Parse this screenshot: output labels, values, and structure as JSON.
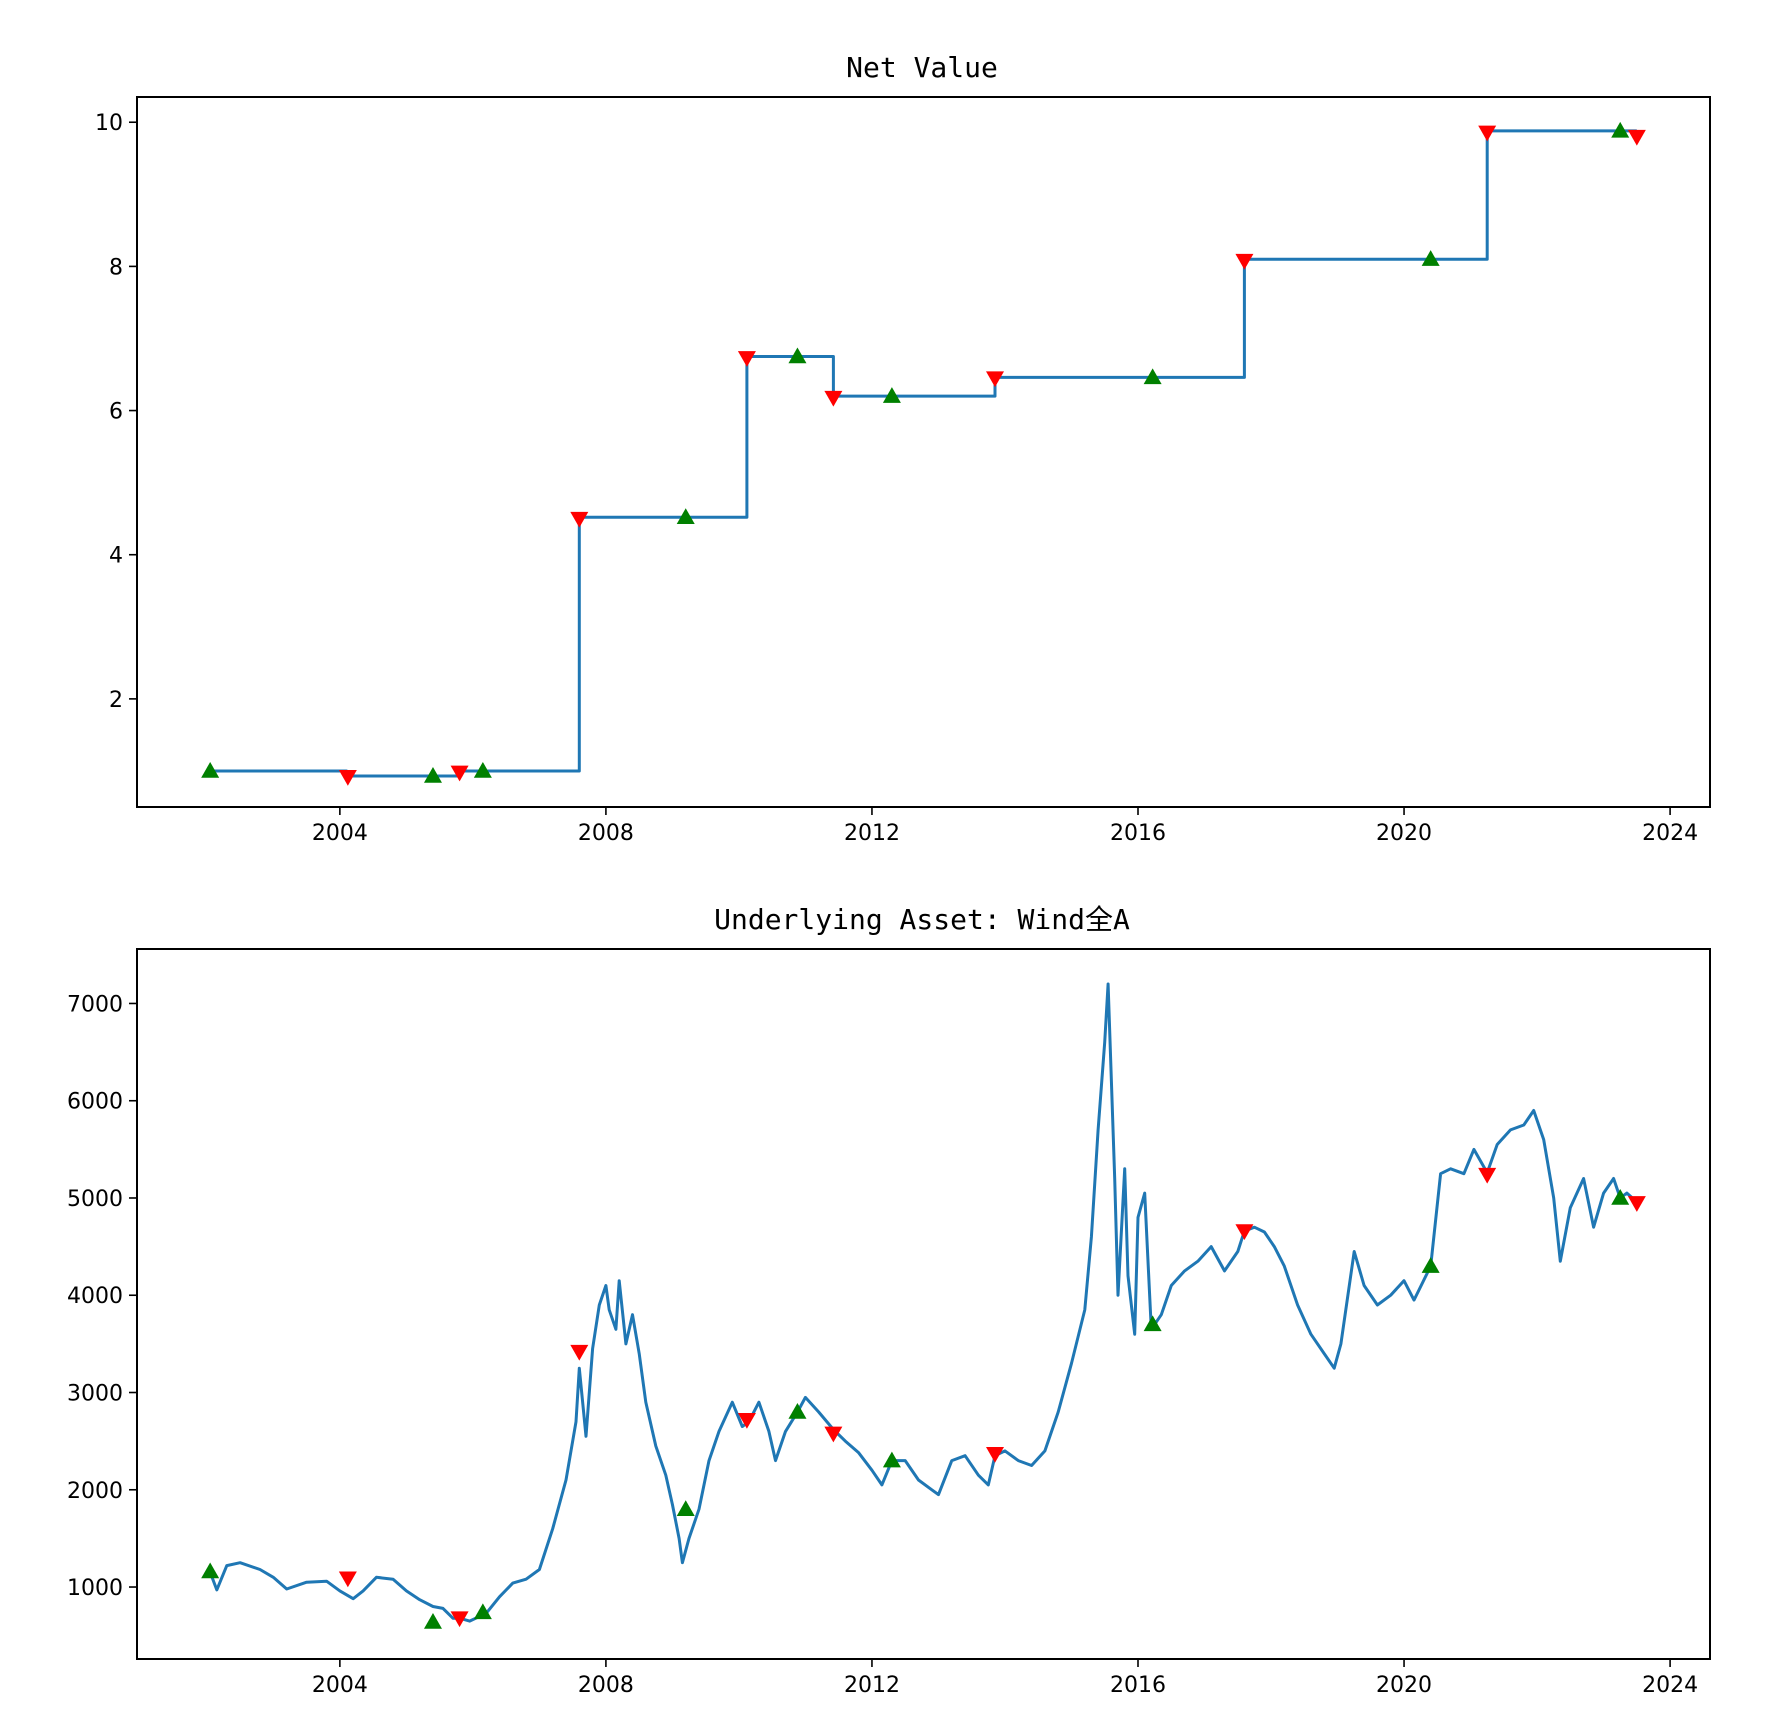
{
  "colors": {
    "line": "#1f77b4",
    "buy": "#008000",
    "sell": "#ff0000"
  },
  "chart_data": [
    {
      "type": "line",
      "title": "Net Value",
      "xlabel": "",
      "ylabel": "",
      "xlim": [
        2000.95,
        2024.6
      ],
      "ylim": [
        0.5,
        10.35
      ],
      "grid": false,
      "x_ticks": [
        2004,
        2008,
        2012,
        2016,
        2020,
        2024
      ],
      "x_tick_labels": [
        "2004",
        "2008",
        "2012",
        "2016",
        "2020",
        "2024"
      ],
      "y_ticks": [
        2,
        4,
        6,
        8,
        10
      ],
      "y_tick_labels": [
        "2",
        "4",
        "6",
        "8",
        "10"
      ],
      "series": [
        {
          "style": "step",
          "points": [
            [
              2002.05,
              1.0
            ],
            [
              2004.1,
              1.0
            ],
            [
              2004.1,
              0.93
            ],
            [
              2005.8,
              0.93
            ],
            [
              2005.8,
              1.0
            ],
            [
              2007.6,
              1.0
            ],
            [
              2007.6,
              4.52
            ],
            [
              2010.12,
              4.52
            ],
            [
              2010.12,
              6.75
            ],
            [
              2011.42,
              6.75
            ],
            [
              2011.42,
              6.2
            ],
            [
              2013.85,
              6.2
            ],
            [
              2013.85,
              6.46
            ],
            [
              2017.6,
              6.46
            ],
            [
              2017.6,
              8.1
            ],
            [
              2021.25,
              8.1
            ],
            [
              2021.25,
              9.88
            ],
            [
              2023.5,
              9.88
            ]
          ]
        }
      ],
      "buy_markers": [
        [
          2002.05,
          1.0
        ],
        [
          2005.4,
          0.93
        ],
        [
          2006.15,
          1.0
        ],
        [
          2009.2,
          4.52
        ],
        [
          2010.88,
          6.75
        ],
        [
          2012.3,
          6.2
        ],
        [
          2016.22,
          6.46
        ],
        [
          2020.4,
          8.1
        ],
        [
          2023.25,
          9.88
        ]
      ],
      "sell_markers": [
        [
          2004.12,
          0.92
        ],
        [
          2005.8,
          0.98
        ],
        [
          2007.6,
          4.5
        ],
        [
          2010.12,
          6.73
        ],
        [
          2011.42,
          6.18
        ],
        [
          2013.85,
          6.45
        ],
        [
          2017.6,
          8.08
        ],
        [
          2021.25,
          9.86
        ],
        [
          2023.5,
          9.8
        ]
      ]
    },
    {
      "type": "line",
      "title": "Underlying Asset: Wind全A",
      "xlabel": "",
      "ylabel": "",
      "xlim": [
        2000.95,
        2024.6
      ],
      "ylim": [
        260,
        7560
      ],
      "grid": false,
      "x_ticks": [
        2004,
        2008,
        2012,
        2016,
        2020,
        2024
      ],
      "x_tick_labels": [
        "2004",
        "2008",
        "2012",
        "2016",
        "2020",
        "2024"
      ],
      "y_ticks": [
        1000,
        2000,
        3000,
        4000,
        5000,
        6000,
        7000
      ],
      "y_tick_labels": [
        "1000",
        "2000",
        "3000",
        "4000",
        "5000",
        "6000",
        "7000"
      ],
      "series": [
        {
          "style": "line",
          "points": [
            [
              2002.05,
              1150
            ],
            [
              2002.15,
              970
            ],
            [
              2002.3,
              1220
            ],
            [
              2002.5,
              1250
            ],
            [
              2002.8,
              1180
            ],
            [
              2003.0,
              1100
            ],
            [
              2003.2,
              980
            ],
            [
              2003.5,
              1050
            ],
            [
              2003.8,
              1060
            ],
            [
              2004.0,
              960
            ],
            [
              2004.2,
              880
            ],
            [
              2004.35,
              960
            ],
            [
              2004.55,
              1100
            ],
            [
              2004.8,
              1080
            ],
            [
              2005.0,
              960
            ],
            [
              2005.2,
              870
            ],
            [
              2005.4,
              800
            ],
            [
              2005.55,
              780
            ],
            [
              2005.7,
              680
            ],
            [
              2005.8,
              680
            ],
            [
              2005.95,
              650
            ],
            [
              2006.2,
              730
            ],
            [
              2006.4,
              900
            ],
            [
              2006.6,
              1040
            ],
            [
              2006.8,
              1080
            ],
            [
              2007.0,
              1180
            ],
            [
              2007.2,
              1600
            ],
            [
              2007.4,
              2100
            ],
            [
              2007.55,
              2700
            ],
            [
              2007.6,
              3250
            ],
            [
              2007.7,
              2550
            ],
            [
              2007.8,
              3450
            ],
            [
              2007.9,
              3900
            ],
            [
              2008.0,
              4100
            ],
            [
              2008.05,
              3850
            ],
            [
              2008.15,
              3650
            ],
            [
              2008.2,
              4150
            ],
            [
              2008.3,
              3500
            ],
            [
              2008.4,
              3800
            ],
            [
              2008.5,
              3400
            ],
            [
              2008.6,
              2900
            ],
            [
              2008.75,
              2450
            ],
            [
              2008.9,
              2150
            ],
            [
              2009.0,
              1850
            ],
            [
              2009.1,
              1500
            ],
            [
              2009.15,
              1250
            ],
            [
              2009.25,
              1500
            ],
            [
              2009.4,
              1800
            ],
            [
              2009.55,
              2300
            ],
            [
              2009.7,
              2600
            ],
            [
              2009.9,
              2900
            ],
            [
              2010.05,
              2650
            ],
            [
              2010.15,
              2700
            ],
            [
              2010.3,
              2900
            ],
            [
              2010.45,
              2600
            ],
            [
              2010.55,
              2300
            ],
            [
              2010.7,
              2600
            ],
            [
              2010.88,
              2800
            ],
            [
              2011.0,
              2950
            ],
            [
              2011.2,
              2800
            ],
            [
              2011.42,
              2620
            ],
            [
              2011.6,
              2500
            ],
            [
              2011.8,
              2380
            ],
            [
              2012.0,
              2200
            ],
            [
              2012.15,
              2050
            ],
            [
              2012.3,
              2300
            ],
            [
              2012.5,
              2300
            ],
            [
              2012.7,
              2100
            ],
            [
              2012.9,
              2000
            ],
            [
              2013.0,
              1950
            ],
            [
              2013.2,
              2300
            ],
            [
              2013.4,
              2350
            ],
            [
              2013.6,
              2150
            ],
            [
              2013.75,
              2050
            ],
            [
              2013.85,
              2350
            ],
            [
              2014.0,
              2400
            ],
            [
              2014.2,
              2300
            ],
            [
              2014.4,
              2250
            ],
            [
              2014.6,
              2400
            ],
            [
              2014.8,
              2800
            ],
            [
              2015.0,
              3300
            ],
            [
              2015.2,
              3850
            ],
            [
              2015.3,
              4600
            ],
            [
              2015.4,
              5700
            ],
            [
              2015.5,
              6600
            ],
            [
              2015.55,
              7200
            ],
            [
              2015.6,
              6200
            ],
            [
              2015.65,
              5200
            ],
            [
              2015.7,
              4000
            ],
            [
              2015.8,
              5300
            ],
            [
              2015.85,
              4200
            ],
            [
              2015.95,
              3600
            ],
            [
              2016.0,
              4800
            ],
            [
              2016.1,
              5050
            ],
            [
              2016.2,
              3650
            ],
            [
              2016.35,
              3800
            ],
            [
              2016.5,
              4100
            ],
            [
              2016.7,
              4250
            ],
            [
              2016.9,
              4350
            ],
            [
              2017.1,
              4500
            ],
            [
              2017.3,
              4250
            ],
            [
              2017.5,
              4450
            ],
            [
              2017.6,
              4660
            ],
            [
              2017.75,
              4700
            ],
            [
              2017.9,
              4650
            ],
            [
              2018.05,
              4500
            ],
            [
              2018.2,
              4300
            ],
            [
              2018.4,
              3900
            ],
            [
              2018.6,
              3600
            ],
            [
              2018.8,
              3400
            ],
            [
              2018.95,
              3250
            ],
            [
              2019.05,
              3500
            ],
            [
              2019.25,
              4450
            ],
            [
              2019.4,
              4100
            ],
            [
              2019.6,
              3900
            ],
            [
              2019.8,
              4000
            ],
            [
              2020.0,
              4150
            ],
            [
              2020.15,
              3950
            ],
            [
              2020.4,
              4300
            ],
            [
              2020.55,
              5250
            ],
            [
              2020.7,
              5300
            ],
            [
              2020.9,
              5250
            ],
            [
              2021.05,
              5500
            ],
            [
              2021.25,
              5260
            ],
            [
              2021.4,
              5550
            ],
            [
              2021.6,
              5700
            ],
            [
              2021.8,
              5750
            ],
            [
              2021.95,
              5900
            ],
            [
              2022.1,
              5600
            ],
            [
              2022.25,
              5000
            ],
            [
              2022.35,
              4350
            ],
            [
              2022.5,
              4900
            ],
            [
              2022.7,
              5200
            ],
            [
              2022.85,
              4700
            ],
            [
              2023.0,
              5050
            ],
            [
              2023.15,
              5200
            ],
            [
              2023.25,
              5000
            ],
            [
              2023.35,
              5050
            ],
            [
              2023.5,
              4960
            ]
          ]
        }
      ],
      "buy_markers": [
        [
          2002.05,
          1160
        ],
        [
          2005.4,
          640
        ],
        [
          2006.15,
          740
        ],
        [
          2009.2,
          1800
        ],
        [
          2010.88,
          2800
        ],
        [
          2012.3,
          2300
        ],
        [
          2016.22,
          3700
        ],
        [
          2020.4,
          4300
        ],
        [
          2023.25,
          5000
        ]
      ],
      "sell_markers": [
        [
          2004.12,
          1090
        ],
        [
          2005.8,
          680
        ],
        [
          2007.6,
          3420
        ],
        [
          2010.12,
          2720
        ],
        [
          2011.42,
          2580
        ],
        [
          2013.85,
          2370
        ],
        [
          2017.6,
          4660
        ],
        [
          2021.25,
          5240
        ],
        [
          2023.5,
          4950
        ]
      ]
    }
  ]
}
